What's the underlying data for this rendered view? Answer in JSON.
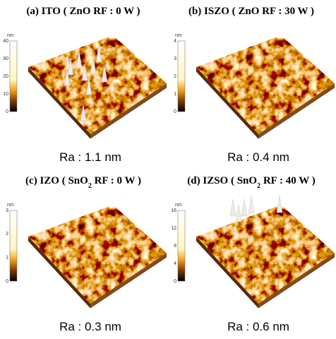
{
  "panels": [
    {
      "title": "(a) ITO ( ZnO RF : 0 W )",
      "colorbar": {
        "unit": "nm",
        "ticks": [
          40,
          30,
          20,
          10,
          0
        ]
      },
      "roughness": "Ra : 1.1 nm"
    },
    {
      "title": "(b) ISZO ( ZnO RF : 30 W )",
      "colorbar": {
        "unit": "nm",
        "ticks": [
          4,
          3,
          2,
          1,
          0
        ]
      },
      "roughness": "Ra : 0.4 nm"
    },
    {
      "title": {
        "prefix": "(c) IZO ( SnO",
        "sub": "2",
        "suffix": " RF : 0 W )"
      },
      "colorbar": {
        "unit": "nm",
        "ticks": [
          3,
          2,
          1,
          0
        ]
      },
      "roughness": "Ra : 0.3 nm"
    },
    {
      "title": {
        "prefix": "(d) IZSO ( SnO",
        "sub": "2",
        "suffix": " RF : 40 W )"
      },
      "colorbar": {
        "unit": "nm",
        "ticks": [
          16,
          12,
          8,
          4,
          0
        ]
      },
      "roughness": "Ra : 0.6 nm"
    }
  ]
}
